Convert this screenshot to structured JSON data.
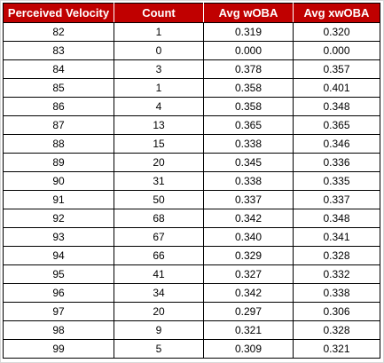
{
  "table": {
    "headers": [
      "Perceived Velocity",
      "Count",
      "Avg wOBA",
      "Avg xwOBA"
    ],
    "rows": [
      [
        "82",
        "1",
        "0.319",
        "0.320"
      ],
      [
        "83",
        "0",
        "0.000",
        "0.000"
      ],
      [
        "84",
        "3",
        "0.378",
        "0.357"
      ],
      [
        "85",
        "1",
        "0.358",
        "0.401"
      ],
      [
        "86",
        "4",
        "0.358",
        "0.348"
      ],
      [
        "87",
        "13",
        "0.365",
        "0.365"
      ],
      [
        "88",
        "15",
        "0.338",
        "0.346"
      ],
      [
        "89",
        "20",
        "0.345",
        "0.336"
      ],
      [
        "90",
        "31",
        "0.338",
        "0.335"
      ],
      [
        "91",
        "50",
        "0.337",
        "0.337"
      ],
      [
        "92",
        "68",
        "0.342",
        "0.348"
      ],
      [
        "93",
        "67",
        "0.340",
        "0.341"
      ],
      [
        "94",
        "66",
        "0.329",
        "0.328"
      ],
      [
        "95",
        "41",
        "0.327",
        "0.332"
      ],
      [
        "96",
        "34",
        "0.342",
        "0.338"
      ],
      [
        "97",
        "20",
        "0.297",
        "0.306"
      ],
      [
        "98",
        "9",
        "0.321",
        "0.328"
      ],
      [
        "99",
        "5",
        "0.309",
        "0.321"
      ]
    ]
  },
  "colors": {
    "header_background": "#c00000",
    "header_text": "#ffffff",
    "grid_lines": "#000000",
    "cell_text": "#000000"
  }
}
